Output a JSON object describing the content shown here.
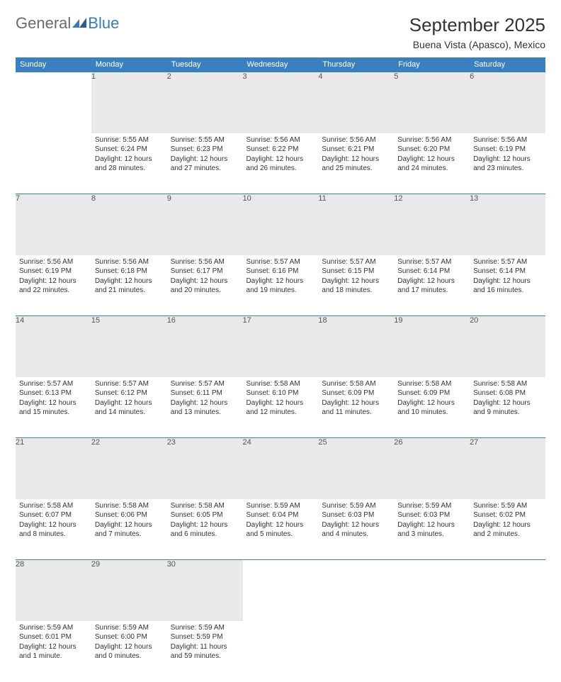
{
  "logo": {
    "general": "General",
    "blue": "Blue"
  },
  "title": "September 2025",
  "location": "Buena Vista (Apasco), Mexico",
  "colors": {
    "header_bg": "#3a80bf",
    "header_fg": "#ffffff",
    "daynum_bg": "#e9e9e9",
    "border": "#3a80bf",
    "logo_gray": "#6a6a6a",
    "logo_blue": "#3a7ab8"
  },
  "weekdays": [
    "Sunday",
    "Monday",
    "Tuesday",
    "Wednesday",
    "Thursday",
    "Friday",
    "Saturday"
  ],
  "weeks": [
    [
      null,
      {
        "n": "1",
        "sunrise": "5:55 AM",
        "sunset": "6:24 PM",
        "daylight": "12 hours and 28 minutes."
      },
      {
        "n": "2",
        "sunrise": "5:55 AM",
        "sunset": "6:23 PM",
        "daylight": "12 hours and 27 minutes."
      },
      {
        "n": "3",
        "sunrise": "5:56 AM",
        "sunset": "6:22 PM",
        "daylight": "12 hours and 26 minutes."
      },
      {
        "n": "4",
        "sunrise": "5:56 AM",
        "sunset": "6:21 PM",
        "daylight": "12 hours and 25 minutes."
      },
      {
        "n": "5",
        "sunrise": "5:56 AM",
        "sunset": "6:20 PM",
        "daylight": "12 hours and 24 minutes."
      },
      {
        "n": "6",
        "sunrise": "5:56 AM",
        "sunset": "6:19 PM",
        "daylight": "12 hours and 23 minutes."
      }
    ],
    [
      {
        "n": "7",
        "sunrise": "5:56 AM",
        "sunset": "6:19 PM",
        "daylight": "12 hours and 22 minutes."
      },
      {
        "n": "8",
        "sunrise": "5:56 AM",
        "sunset": "6:18 PM",
        "daylight": "12 hours and 21 minutes."
      },
      {
        "n": "9",
        "sunrise": "5:56 AM",
        "sunset": "6:17 PM",
        "daylight": "12 hours and 20 minutes."
      },
      {
        "n": "10",
        "sunrise": "5:57 AM",
        "sunset": "6:16 PM",
        "daylight": "12 hours and 19 minutes."
      },
      {
        "n": "11",
        "sunrise": "5:57 AM",
        "sunset": "6:15 PM",
        "daylight": "12 hours and 18 minutes."
      },
      {
        "n": "12",
        "sunrise": "5:57 AM",
        "sunset": "6:14 PM",
        "daylight": "12 hours and 17 minutes."
      },
      {
        "n": "13",
        "sunrise": "5:57 AM",
        "sunset": "6:14 PM",
        "daylight": "12 hours and 16 minutes."
      }
    ],
    [
      {
        "n": "14",
        "sunrise": "5:57 AM",
        "sunset": "6:13 PM",
        "daylight": "12 hours and 15 minutes."
      },
      {
        "n": "15",
        "sunrise": "5:57 AM",
        "sunset": "6:12 PM",
        "daylight": "12 hours and 14 minutes."
      },
      {
        "n": "16",
        "sunrise": "5:57 AM",
        "sunset": "6:11 PM",
        "daylight": "12 hours and 13 minutes."
      },
      {
        "n": "17",
        "sunrise": "5:58 AM",
        "sunset": "6:10 PM",
        "daylight": "12 hours and 12 minutes."
      },
      {
        "n": "18",
        "sunrise": "5:58 AM",
        "sunset": "6:09 PM",
        "daylight": "12 hours and 11 minutes."
      },
      {
        "n": "19",
        "sunrise": "5:58 AM",
        "sunset": "6:09 PM",
        "daylight": "12 hours and 10 minutes."
      },
      {
        "n": "20",
        "sunrise": "5:58 AM",
        "sunset": "6:08 PM",
        "daylight": "12 hours and 9 minutes."
      }
    ],
    [
      {
        "n": "21",
        "sunrise": "5:58 AM",
        "sunset": "6:07 PM",
        "daylight": "12 hours and 8 minutes."
      },
      {
        "n": "22",
        "sunrise": "5:58 AM",
        "sunset": "6:06 PM",
        "daylight": "12 hours and 7 minutes."
      },
      {
        "n": "23",
        "sunrise": "5:58 AM",
        "sunset": "6:05 PM",
        "daylight": "12 hours and 6 minutes."
      },
      {
        "n": "24",
        "sunrise": "5:59 AM",
        "sunset": "6:04 PM",
        "daylight": "12 hours and 5 minutes."
      },
      {
        "n": "25",
        "sunrise": "5:59 AM",
        "sunset": "6:03 PM",
        "daylight": "12 hours and 4 minutes."
      },
      {
        "n": "26",
        "sunrise": "5:59 AM",
        "sunset": "6:03 PM",
        "daylight": "12 hours and 3 minutes."
      },
      {
        "n": "27",
        "sunrise": "5:59 AM",
        "sunset": "6:02 PM",
        "daylight": "12 hours and 2 minutes."
      }
    ],
    [
      {
        "n": "28",
        "sunrise": "5:59 AM",
        "sunset": "6:01 PM",
        "daylight": "12 hours and 1 minute."
      },
      {
        "n": "29",
        "sunrise": "5:59 AM",
        "sunset": "6:00 PM",
        "daylight": "12 hours and 0 minutes."
      },
      {
        "n": "30",
        "sunrise": "5:59 AM",
        "sunset": "5:59 PM",
        "daylight": "11 hours and 59 minutes."
      },
      null,
      null,
      null,
      null
    ]
  ],
  "labels": {
    "sunrise": "Sunrise: ",
    "sunset": "Sunset: ",
    "daylight": "Daylight: "
  }
}
